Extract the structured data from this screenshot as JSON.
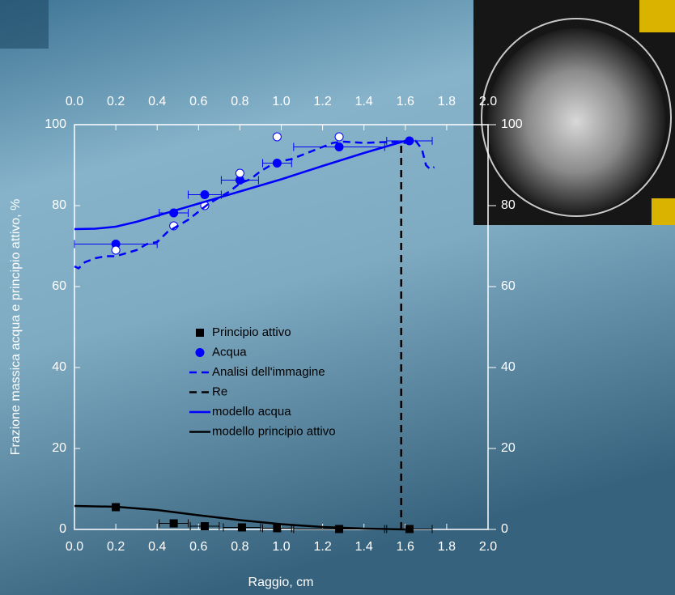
{
  "chart_data": {
    "type": "scatter",
    "x_label": "Raggio, cm",
    "y_label": "Frazione massica acqua e principio attivo, %",
    "xlim": [
      0,
      2
    ],
    "ylim": [
      0,
      100
    ],
    "xticks": [
      {
        "value": 0,
        "label": "0.0"
      },
      0.2,
      0.4,
      0.6,
      0.8,
      {
        "value": 1,
        "label": "1.0"
      },
      1.2,
      1.4,
      1.6,
      1.8,
      {
        "value": 2,
        "label": "2.0"
      }
    ],
    "yticks": [
      0,
      20,
      40,
      60,
      80,
      100
    ],
    "series": [
      {
        "name": "Principio attivo",
        "mode": "markers",
        "marker": "square",
        "color": "#000000",
        "x": [
          0.2,
          0.48,
          0.63,
          0.81,
          0.98,
          1.28,
          1.62
        ],
        "values": [
          5.5,
          1.5,
          0.8,
          0.5,
          0.3,
          0.1,
          0.1
        ],
        "xerr": [
          null,
          0.07,
          0.07,
          0.09,
          0.07,
          0.22,
          0.11
        ]
      },
      {
        "name": "Acqua",
        "mode": "markers",
        "marker": "circle",
        "color": "#0000ff",
        "x": [
          0.2,
          0.48,
          0.63,
          0.8,
          0.98,
          1.28,
          1.62
        ],
        "values": [
          70.5,
          78.2,
          82.7,
          86.3,
          90.5,
          94.5,
          96
        ],
        "xerr": [
          0.2,
          0.07,
          0.08,
          0.09,
          0.07,
          0.22,
          0.11
        ]
      },
      {
        "mode": "markers",
        "marker": "open-circle",
        "color": "#0000ff",
        "x": [
          0.2,
          0.48,
          0.63,
          0.8,
          0.98,
          1.28
        ],
        "values": [
          69,
          75,
          80,
          88,
          97,
          97
        ]
      },
      {
        "name": "Analisi dell'immagine",
        "mode": "line",
        "dash": true,
        "color": "#0000ff",
        "x": [
          0,
          0.02,
          0.05,
          0.1,
          0.15,
          0.2,
          0.3,
          0.35,
          0.4,
          0.45,
          0.5,
          0.55,
          0.6,
          0.65,
          0.7,
          0.75,
          0.8,
          0.85,
          0.9,
          0.95,
          1.0,
          1.05,
          1.1,
          1.15,
          1.2,
          1.25,
          1.3,
          1.4,
          1.5,
          1.55,
          1.6,
          1.65,
          1.68,
          1.7,
          1.72,
          1.74
        ],
        "values": [
          65,
          64.5,
          66,
          67,
          67.5,
          67.5,
          69,
          70.5,
          71,
          73.5,
          75,
          76.5,
          78.5,
          80.5,
          82,
          83.5,
          85.5,
          86.5,
          88.5,
          90,
          91,
          91.5,
          92.5,
          93.5,
          94.5,
          95.5,
          95.8,
          95.5,
          95.7,
          95.7,
          95.5,
          96,
          94,
          90,
          89,
          89.5
        ]
      },
      {
        "name": "Re",
        "mode": "line",
        "dash": true,
        "color": "#000000",
        "x": [
          1.58,
          1.58
        ],
        "values": [
          0,
          96
        ]
      },
      {
        "name": "modello acqua",
        "mode": "line",
        "dash": false,
        "color": "#0000ff",
        "x": [
          0,
          0.1,
          0.2,
          0.3,
          0.4,
          0.6,
          0.8,
          1.0,
          1.2,
          1.4,
          1.6
        ],
        "values": [
          74.2,
          74.3,
          74.8,
          76,
          77.5,
          80.5,
          83.5,
          86.5,
          89.8,
          93,
          96
        ]
      },
      {
        "name": "modello principio attivo",
        "mode": "line",
        "dash": false,
        "color": "#000000",
        "x": [
          0,
          0.2,
          0.4,
          0.6,
          0.8,
          1.0,
          1.2,
          1.4,
          1.6
        ],
        "values": [
          5.8,
          5.6,
          4.8,
          3.5,
          2.3,
          1.3,
          0.6,
          0.2,
          0
        ]
      }
    ]
  }
}
